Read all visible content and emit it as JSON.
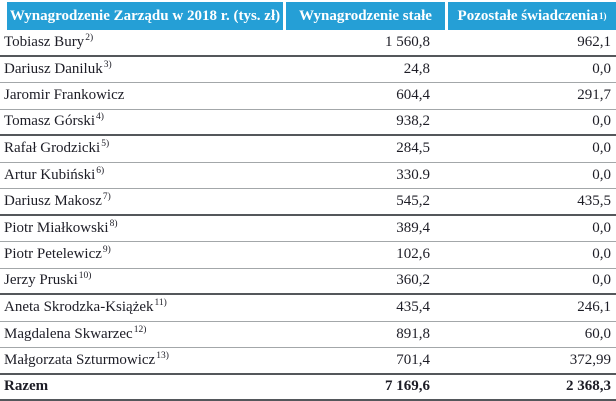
{
  "colors": {
    "header_bg": "#259fd6",
    "header_text": "#ffffff",
    "thin_rule": "#a3a7a9",
    "thick_rule": "#54575b",
    "body_text": "#1d1d26"
  },
  "table": {
    "header": {
      "col1": "Wynagrodzenie Zarządu w 2018 r. (tys. zł)",
      "col2": "Wynagrodzenie stałe",
      "col3": "Pozostałe świadczenia",
      "col3_sup": "1)"
    },
    "rows": [
      {
        "name": "Tobiasz Bury",
        "sup": "2)",
        "fixed": "1 560,8",
        "other": "962,1",
        "thick_after": true,
        "bold": false
      },
      {
        "name": "Dariusz Daniluk",
        "sup": "3)",
        "fixed": "24,8",
        "other": "0,0",
        "thick_after": false,
        "bold": false
      },
      {
        "name": "Jaromir Frankowicz",
        "sup": "",
        "fixed": "604,4",
        "other": "291,7",
        "thick_after": false,
        "bold": false
      },
      {
        "name": "Tomasz Górski",
        "sup": "4)",
        "fixed": "938,2",
        "other": "0,0",
        "thick_after": true,
        "bold": false
      },
      {
        "name": "Rafał Grodzicki",
        "sup": "5)",
        "fixed": "284,5",
        "other": "0,0",
        "thick_after": false,
        "bold": false
      },
      {
        "name": "Artur Kubiński",
        "sup": "6)",
        "fixed": "330.9",
        "other": "0,0",
        "thick_after": false,
        "bold": false
      },
      {
        "name": "Dariusz Makosz",
        "sup": "7)",
        "fixed": "545,2",
        "other": "435,5",
        "thick_after": true,
        "bold": false
      },
      {
        "name": "Piotr Miałkowski",
        "sup": "8)",
        "fixed": "389,4",
        "other": "0,0",
        "thick_after": false,
        "bold": false
      },
      {
        "name": "Piotr Petelewicz",
        "sup": "9)",
        "fixed": "102,6",
        "other": "0,0",
        "thick_after": false,
        "bold": false
      },
      {
        "name": "Jerzy Pruski",
        "sup": "10)",
        "fixed": "360,2",
        "other": "0,0",
        "thick_after": true,
        "bold": false
      },
      {
        "name": "Aneta Skrodzka-Książek",
        "sup": "11)",
        "fixed": "435,4",
        "other": "246,1",
        "thick_after": false,
        "bold": false
      },
      {
        "name": "Magdalena Skwarzec",
        "sup": "12)",
        "fixed": "891,8",
        "other": "60,0",
        "thick_after": false,
        "bold": false
      },
      {
        "name": "Małgorzata Szturmowicz",
        "sup": "13)",
        "fixed": "701,4",
        "other": "372,99",
        "thick_after": true,
        "bold": false
      },
      {
        "name": "Razem",
        "sup": "",
        "fixed": "7 169,6",
        "other": "2 368,3",
        "thick_after": true,
        "bold": true
      }
    ]
  }
}
